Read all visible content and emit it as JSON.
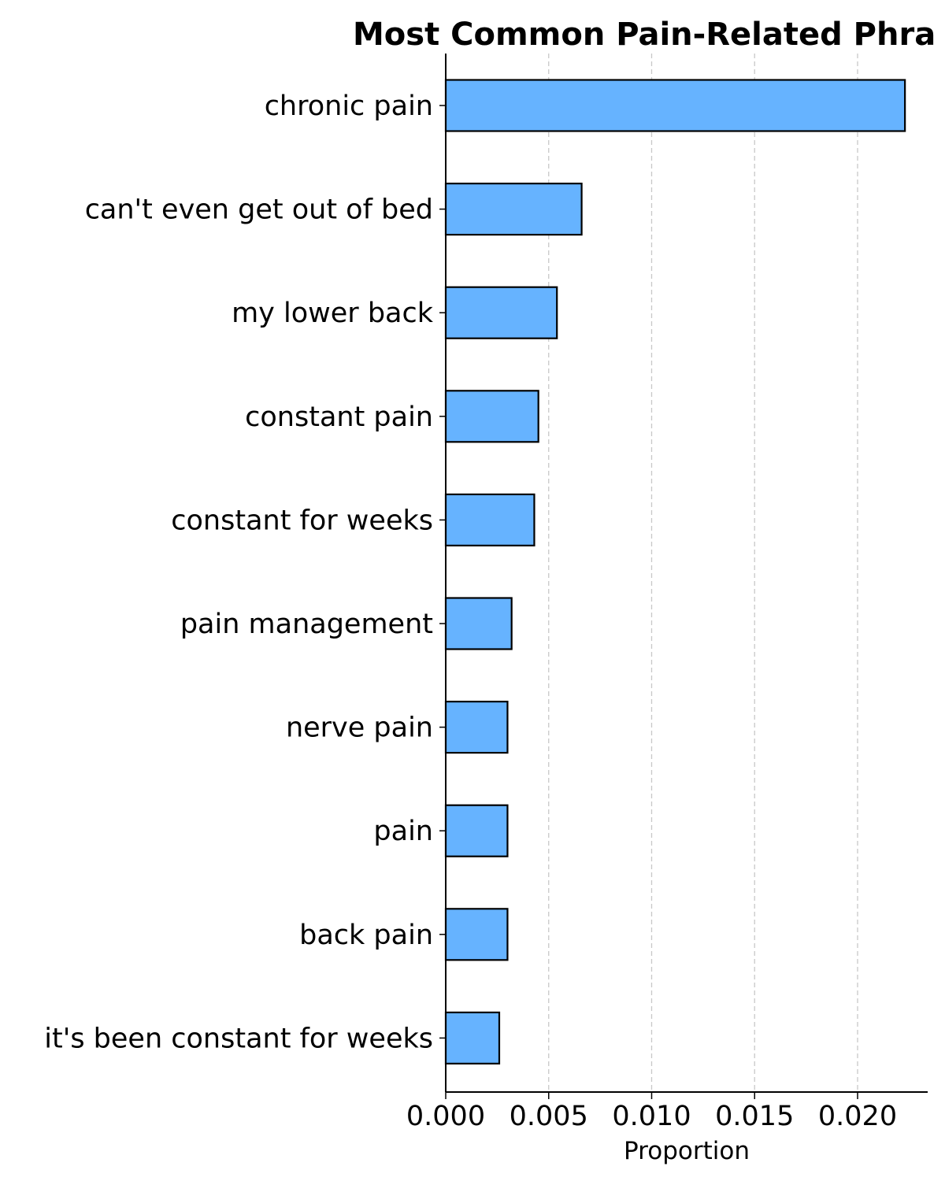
{
  "chart_data": {
    "type": "bar",
    "orientation": "horizontal",
    "title": "Most Common Pain-Related Phra",
    "xlabel": "Proportion",
    "ylabel": "",
    "categories": [
      "chronic pain",
      "can't even get out of bed",
      "my lower back",
      "constant pain",
      "constant for weeks",
      "pain management",
      "nerve pain",
      "pain",
      "back pain",
      "it's been constant for weeks"
    ],
    "values": [
      0.0223,
      0.0066,
      0.0054,
      0.0045,
      0.0043,
      0.0032,
      0.003,
      0.003,
      0.003,
      0.0026
    ],
    "xticks": [
      "0.000",
      "0.005",
      "0.010",
      "0.015",
      "0.020"
    ],
    "xtick_values": [
      0,
      0.005,
      0.01,
      0.015,
      0.02
    ],
    "xlim": [
      0,
      0.0234
    ],
    "grid": "x-dashed",
    "bar_color": "#66b3ff",
    "edge_color": "#000000",
    "grid_color": "#c8c8c8"
  }
}
